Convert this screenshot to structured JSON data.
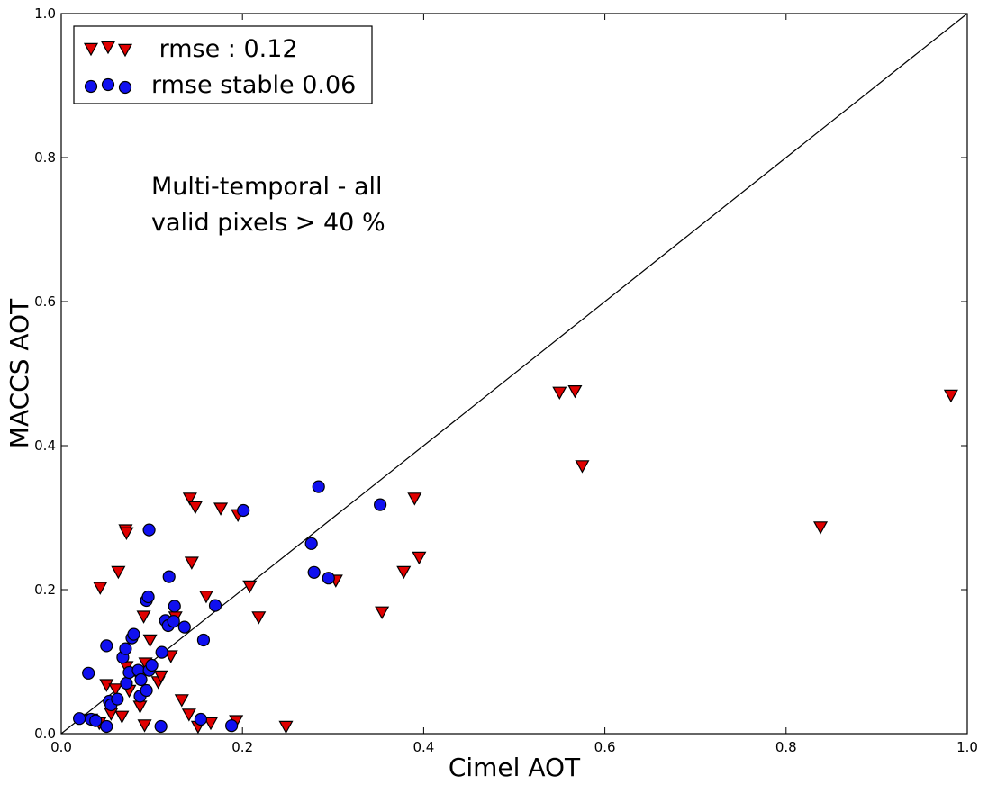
{
  "chart_data": {
    "type": "scatter",
    "title": "",
    "xlabel": "Cimel AOT",
    "ylabel": "MACCS AOT",
    "xlim": [
      0.0,
      1.0
    ],
    "ylim": [
      0.0,
      1.0
    ],
    "xticks": [
      "0.0",
      "0.2",
      "0.4",
      "0.6",
      "0.8",
      "1.0"
    ],
    "yticks": [
      "0.0",
      "0.2",
      "0.4",
      "0.6",
      "0.8",
      "1.0"
    ],
    "grid": false,
    "legend_position": "top-left",
    "reference_line": "y = x",
    "annotation": [
      "Multi-temporal - all",
      "valid pixels > 40 %"
    ],
    "series": [
      {
        "name": " rmse : 0.12",
        "marker": "triangle-down",
        "color": "#e00000",
        "points": [
          [
            0.033,
            0.02
          ],
          [
            0.042,
            0.015
          ],
          [
            0.043,
            0.203
          ],
          [
            0.05,
            0.068
          ],
          [
            0.055,
            0.028
          ],
          [
            0.06,
            0.062
          ],
          [
            0.063,
            0.225
          ],
          [
            0.067,
            0.024
          ],
          [
            0.071,
            0.283
          ],
          [
            0.072,
            0.279
          ],
          [
            0.072,
            0.093
          ],
          [
            0.075,
            0.06
          ],
          [
            0.083,
            0.085
          ],
          [
            0.087,
            0.038
          ],
          [
            0.091,
            0.163
          ],
          [
            0.092,
            0.012
          ],
          [
            0.093,
            0.098
          ],
          [
            0.098,
            0.13
          ],
          [
            0.107,
            0.072
          ],
          [
            0.11,
            0.08
          ],
          [
            0.121,
            0.108
          ],
          [
            0.126,
            0.162
          ],
          [
            0.133,
            0.047
          ],
          [
            0.141,
            0.027
          ],
          [
            0.142,
            0.327
          ],
          [
            0.144,
            0.238
          ],
          [
            0.148,
            0.315
          ],
          [
            0.151,
            0.01
          ],
          [
            0.16,
            0.191
          ],
          [
            0.165,
            0.015
          ],
          [
            0.176,
            0.313
          ],
          [
            0.193,
            0.018
          ],
          [
            0.195,
            0.304
          ],
          [
            0.208,
            0.205
          ],
          [
            0.218,
            0.162
          ],
          [
            0.248,
            0.01
          ],
          [
            0.303,
            0.213
          ],
          [
            0.354,
            0.169
          ],
          [
            0.378,
            0.225
          ],
          [
            0.39,
            0.327
          ],
          [
            0.395,
            0.245
          ],
          [
            0.55,
            0.474
          ],
          [
            0.567,
            0.476
          ],
          [
            0.575,
            0.372
          ],
          [
            0.838,
            0.287
          ],
          [
            0.982,
            0.47
          ]
        ]
      },
      {
        "name": "rmse stable 0.06",
        "marker": "circle",
        "color": "#1010f0",
        "points": [
          [
            0.02,
            0.021
          ],
          [
            0.03,
            0.084
          ],
          [
            0.033,
            0.02
          ],
          [
            0.038,
            0.018
          ],
          [
            0.05,
            0.01
          ],
          [
            0.05,
            0.122
          ],
          [
            0.053,
            0.045
          ],
          [
            0.055,
            0.04
          ],
          [
            0.062,
            0.048
          ],
          [
            0.068,
            0.106
          ],
          [
            0.071,
            0.118
          ],
          [
            0.072,
            0.07
          ],
          [
            0.075,
            0.085
          ],
          [
            0.078,
            0.133
          ],
          [
            0.08,
            0.138
          ],
          [
            0.085,
            0.088
          ],
          [
            0.087,
            0.052
          ],
          [
            0.088,
            0.075
          ],
          [
            0.094,
            0.06
          ],
          [
            0.094,
            0.185
          ],
          [
            0.096,
            0.19
          ],
          [
            0.097,
            0.283
          ],
          [
            0.097,
            0.088
          ],
          [
            0.1,
            0.095
          ],
          [
            0.11,
            0.01
          ],
          [
            0.111,
            0.113
          ],
          [
            0.115,
            0.157
          ],
          [
            0.118,
            0.15
          ],
          [
            0.119,
            0.218
          ],
          [
            0.124,
            0.156
          ],
          [
            0.125,
            0.177
          ],
          [
            0.136,
            0.148
          ],
          [
            0.154,
            0.02
          ],
          [
            0.157,
            0.13
          ],
          [
            0.17,
            0.178
          ],
          [
            0.188,
            0.011
          ],
          [
            0.201,
            0.31
          ],
          [
            0.276,
            0.264
          ],
          [
            0.279,
            0.224
          ],
          [
            0.284,
            0.343
          ],
          [
            0.295,
            0.216
          ],
          [
            0.352,
            0.318
          ]
        ]
      }
    ]
  }
}
